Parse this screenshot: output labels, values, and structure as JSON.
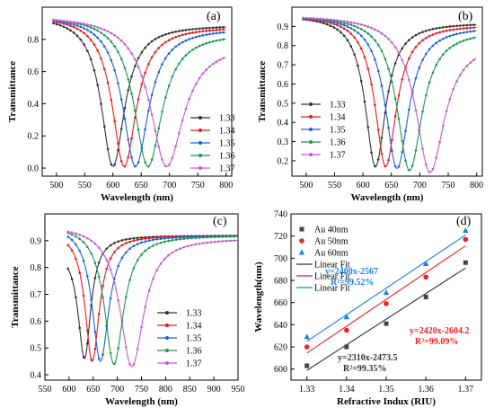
{
  "figure": {
    "panel_labels": [
      "(a)",
      "(b)",
      "(c)",
      "(d)"
    ]
  },
  "chart_data": [
    {
      "panel": "(a)",
      "type": "line",
      "xlabel": "Wavelength (nm)",
      "ylabel": "Transmittance",
      "xlim": [
        475,
        810
      ],
      "ylim": [
        -0.05,
        1.0
      ],
      "xticks": [
        "500",
        "550",
        "600",
        "650",
        "700",
        "750",
        "800"
      ],
      "yticks": [
        "0.0",
        "0.2",
        "0.4",
        "0.6",
        "0.8"
      ],
      "legend_position": "bottom-right",
      "series": [
        {
          "name": "1.33",
          "color": "#333333",
          "center": 600,
          "width": 25,
          "min": 0.01,
          "base": 0.95,
          "right": 0.89
        },
        {
          "name": "1.34",
          "color": "#e41a1c",
          "center": 620,
          "width": 26,
          "min": 0.01,
          "base": 0.95,
          "right": 0.88
        },
        {
          "name": "1.35",
          "color": "#1f5fd6",
          "center": 640,
          "width": 28,
          "min": 0.01,
          "base": 0.95,
          "right": 0.87
        },
        {
          "name": "1.36",
          "color": "#1a9850",
          "center": 662,
          "width": 30,
          "min": 0.01,
          "base": 0.95,
          "right": 0.84
        },
        {
          "name": "1.37",
          "color": "#c45ad0",
          "center": 695,
          "width": 36,
          "min": 0.01,
          "base": 0.95,
          "right": 0.77
        }
      ]
    },
    {
      "panel": "(b)",
      "type": "line",
      "xlabel": "Wavelength (nm)",
      "ylabel": "Transmittance",
      "xlim": [
        475,
        810
      ],
      "ylim": [
        0.12,
        1.0
      ],
      "xticks": [
        "500",
        "550",
        "600",
        "650",
        "700",
        "750",
        "800"
      ],
      "yticks": [
        "0.2",
        "0.3",
        "0.4",
        "0.5",
        "0.6",
        "0.7",
        "0.8",
        "0.9"
      ],
      "legend_position": "bottom-left",
      "series": [
        {
          "name": "1.33",
          "color": "#333333",
          "center": 622,
          "width": 22,
          "min": 0.17,
          "base": 0.96,
          "right": 0.92
        },
        {
          "name": "1.34",
          "color": "#e41a1c",
          "center": 640,
          "width": 23,
          "min": 0.17,
          "base": 0.96,
          "right": 0.91
        },
        {
          "name": "1.35",
          "color": "#1f5fd6",
          "center": 660,
          "width": 25,
          "min": 0.16,
          "base": 0.96,
          "right": 0.9
        },
        {
          "name": "1.36",
          "color": "#1a9850",
          "center": 682,
          "width": 27,
          "min": 0.15,
          "base": 0.96,
          "right": 0.88
        },
        {
          "name": "1.37",
          "color": "#c45ad0",
          "center": 718,
          "width": 31,
          "min": 0.14,
          "base": 0.96,
          "right": 0.82
        }
      ]
    },
    {
      "panel": "(c)",
      "type": "line",
      "xlabel": "Wavelength (nm)",
      "ylabel": "Transmittance",
      "xlim": [
        550,
        950
      ],
      "ylim": [
        0.38,
        1.0
      ],
      "xticks": [
        "550",
        "600",
        "650",
        "700",
        "750",
        "800",
        "850",
        "900",
        "950"
      ],
      "yticks": [
        "0.4",
        "0.5",
        "0.6",
        "0.7",
        "0.8",
        "0.9"
      ],
      "legend_position": "bottom-center",
      "series": [
        {
          "name": "1.33",
          "color": "#333333",
          "center": 632,
          "width": 16,
          "min": 0.46,
          "base": 0.87,
          "right": 0.92
        },
        {
          "name": "1.34",
          "color": "#e41a1c",
          "center": 648,
          "width": 18,
          "min": 0.45,
          "base": 0.94,
          "right": 0.92
        },
        {
          "name": "1.35",
          "color": "#1f5fd6",
          "center": 665,
          "width": 21,
          "min": 0.45,
          "base": 0.96,
          "right": 0.92
        },
        {
          "name": "1.36",
          "color": "#1a9850",
          "center": 693,
          "width": 24,
          "min": 0.44,
          "base": 0.96,
          "right": 0.92
        },
        {
          "name": "1.37",
          "color": "#c45ad0",
          "center": 730,
          "width": 30,
          "min": 0.43,
          "base": 0.96,
          "right": 0.91
        }
      ]
    },
    {
      "panel": "(d)",
      "type": "scatter",
      "xlabel": "Refractive Indux (RIU)",
      "ylabel": "Wavelength(nm)",
      "xlim": [
        1.326,
        1.374
      ],
      "ylim": [
        590,
        740
      ],
      "xticks": [
        "1.33",
        "1.34",
        "1.35",
        "1.36",
        "1.37"
      ],
      "yticks": [
        "600",
        "620",
        "640",
        "660",
        "680",
        "700",
        "720",
        "740"
      ],
      "legend_position": "top-left",
      "x": [
        1.33,
        1.34,
        1.35,
        1.36,
        1.37
      ],
      "series": [
        {
          "name": "Au 40nm",
          "marker": "square",
          "color": "#444444",
          "values": [
            603,
            620,
            641,
            665,
            696
          ]
        },
        {
          "name": "Au 50nm",
          "marker": "circle",
          "color": "#ee2222",
          "values": [
            620,
            635,
            659,
            683,
            717
          ]
        },
        {
          "name": "Au 60nm",
          "marker": "triangle",
          "color": "#1e7fe0",
          "values": [
            629,
            647,
            669,
            695,
            725
          ]
        }
      ],
      "fits": [
        {
          "name": "Linear Fit",
          "color": "#333333",
          "slope": 2310,
          "intercept": -2473.5,
          "equation": "y=2310x-2473.5",
          "r2": "R²=99.35%"
        },
        {
          "name": "Linear Fit",
          "color": "#ee2222",
          "slope": 2420,
          "intercept": -2604.2,
          "equation": "y=2420x-2604.2",
          "r2": "R²=99.09%"
        },
        {
          "name": "Linear Fit",
          "color": "#1e7fe0",
          "slope": 2400,
          "intercept": -2567,
          "equation": "y=2400x-2567",
          "r2": "R²=99.52%"
        }
      ]
    }
  ]
}
